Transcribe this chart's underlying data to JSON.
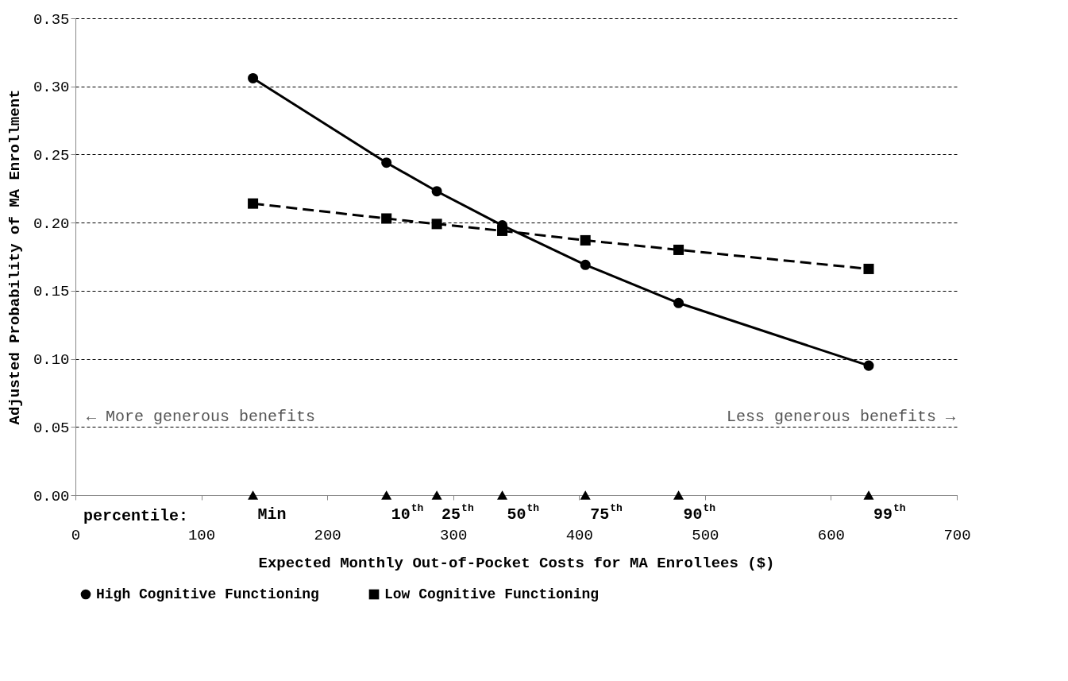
{
  "chart_data": {
    "type": "line",
    "xlabel": "Expected Monthly Out-of-Pocket Costs for MA Enrollees ($)",
    "ylabel": "Adjusted Probability of MA Enrollment",
    "xlim": [
      0,
      700
    ],
    "xticks": [
      0,
      100,
      200,
      300,
      400,
      500,
      600,
      700
    ],
    "ylim": [
      0,
      0.35
    ],
    "yticks": [
      {
        "value": 0,
        "label": "0.00"
      },
      0.05,
      {
        "value": 0.1,
        "label": "0.10"
      },
      0.15,
      {
        "value": 0.2,
        "label": "0.20"
      },
      0.25,
      {
        "value": 0.3,
        "label": "0.30"
      },
      0.35
    ],
    "grid": "y",
    "legend": "bottom",
    "series": [
      {
        "name": "High Cognitive Functioning",
        "color": "#000000",
        "marker": "circle",
        "line_style": "solid",
        "x": [
          141,
          247,
          287,
          339,
          405,
          479,
          630
        ],
        "values": [
          0.306,
          0.244,
          0.223,
          0.198,
          0.169,
          0.141,
          0.095
        ]
      },
      {
        "name": "Low Cognitive Functioning",
        "color": "#000000",
        "marker": "square",
        "line_style": "dashed",
        "x": [
          141,
          247,
          287,
          339,
          405,
          479,
          630
        ],
        "values": [
          0.214,
          0.203,
          0.199,
          0.194,
          0.187,
          0.18,
          0.166
        ]
      },
      {
        "color": "#000000",
        "type": "scatter",
        "marker": "triangle",
        "x": [
          141,
          247,
          287,
          339,
          405,
          479,
          630
        ],
        "values": [
          0,
          0,
          0,
          0,
          0,
          0,
          0
        ]
      }
    ],
    "annotations": [
      "percentile:",
      "← More generous benefits",
      "Less generous benefits →",
      {
        "text": "Min",
        "x": 141,
        "y": 0
      },
      {
        "text": "10$^{th}$",
        "x": 247,
        "y": 0
      },
      {
        "text": "25$^{th}$",
        "x": 287,
        "y": 0
      },
      {
        "text": "50$^{th}$",
        "x": 339,
        "y": 0
      },
      {
        "text": "75$^{th}$",
        "x": 405,
        "y": 0
      },
      {
        "text": "90$^{th}$",
        "x": 479,
        "y": 0
      },
      {
        "text": "99$^{th}$",
        "x": 630,
        "y": 0
      }
    ]
  }
}
